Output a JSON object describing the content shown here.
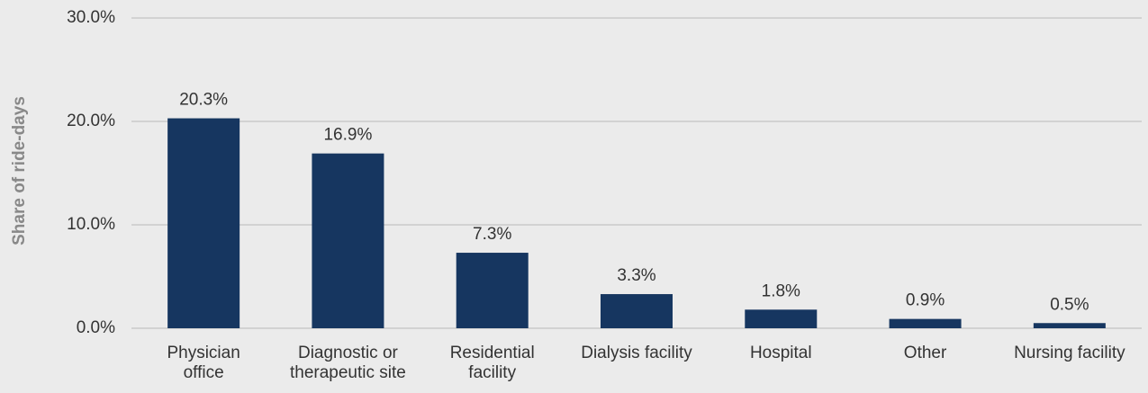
{
  "chart_data": {
    "type": "bar",
    "y_label": "Share of ride-days",
    "categories": [
      "Physician\noffice",
      "Diagnostic or\ntherapeutic site",
      "Residential\nfacility",
      "Dialysis facility",
      "Hospital",
      "Other",
      "Nursing facility"
    ],
    "values": [
      20.3,
      16.9,
      7.3,
      3.3,
      1.8,
      0.9,
      0.5
    ],
    "value_labels": [
      "20.3%",
      "16.9%",
      "7.3%",
      "3.3%",
      "1.8%",
      "0.9%",
      "0.5%"
    ],
    "color": "#163660",
    "ylim": [
      0,
      30
    ],
    "yticks": [
      {
        "value": 0,
        "label": "0.0%"
      },
      {
        "value": 10,
        "label": "10.0%"
      },
      {
        "value": 20,
        "label": "20.0%"
      },
      {
        "value": 30,
        "label": "30.0%"
      }
    ],
    "grid": true
  }
}
